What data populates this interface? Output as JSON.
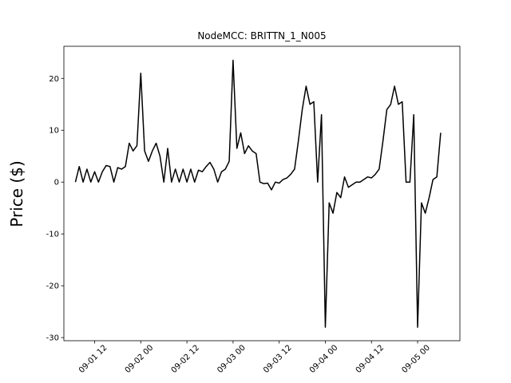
{
  "chart_data": {
    "type": "line",
    "title": "NodeMCC: BRITTN_1_N005",
    "y_label": "Price ($)",
    "x": [
      "09-01 07",
      "09-01 08",
      "09-01 09",
      "09-01 10",
      "09-01 11",
      "09-01 12",
      "09-01 13",
      "09-01 14",
      "09-01 15",
      "09-01 16",
      "09-01 17",
      "09-01 18",
      "09-01 19",
      "09-01 20",
      "09-01 21",
      "09-01 22",
      "09-01 23",
      "09-02 00",
      "09-02 01",
      "09-02 02",
      "09-02 03",
      "09-02 04",
      "09-02 05",
      "09-02 06",
      "09-02 07",
      "09-02 08",
      "09-02 09",
      "09-02 10",
      "09-02 11",
      "09-02 12",
      "09-02 13",
      "09-02 14",
      "09-02 15",
      "09-02 16",
      "09-02 17",
      "09-02 18",
      "09-02 19",
      "09-02 20",
      "09-02 21",
      "09-02 22",
      "09-02 23",
      "09-03 00",
      "09-03 01",
      "09-03 02",
      "09-03 03",
      "09-03 04",
      "09-03 05",
      "09-03 06",
      "09-03 07",
      "09-03 08",
      "09-03 09",
      "09-03 10",
      "09-03 11",
      "09-03 12",
      "09-03 13",
      "09-03 14",
      "09-03 15",
      "09-03 16",
      "09-03 17",
      "09-03 18",
      "09-03 19",
      "09-03 20",
      "09-03 21",
      "09-03 22",
      "09-03 23",
      "09-04 00",
      "09-04 01",
      "09-04 02",
      "09-04 03",
      "09-04 04",
      "09-04 05",
      "09-04 06",
      "09-04 07",
      "09-04 08",
      "09-04 09",
      "09-04 10",
      "09-04 11",
      "09-04 12",
      "09-04 13",
      "09-04 14",
      "09-04 15",
      "09-04 16",
      "09-04 17",
      "09-04 18",
      "09-04 19",
      "09-04 20",
      "09-04 21",
      "09-04 22",
      "09-04 23",
      "09-05 00",
      "09-05 01",
      "09-05 02",
      "09-05 03",
      "09-05 04",
      "09-05 05",
      "09-05 06"
    ],
    "series": [
      {
        "color": "#000000",
        "values": [
          0,
          3,
          0,
          2.5,
          0,
          2,
          0,
          2,
          3.2,
          3,
          0,
          2.8,
          2.5,
          3,
          7.5,
          6,
          7,
          21,
          6,
          4,
          6,
          7.5,
          5,
          0,
          6.5,
          0,
          2.5,
          0,
          2.5,
          0,
          2.5,
          0,
          2.3,
          2,
          3,
          3.8,
          2.5,
          0,
          2,
          2.5,
          4,
          23.5,
          6.5,
          9.5,
          5.5,
          7,
          6,
          5.5,
          0,
          -0.3,
          -0.2,
          -1.5,
          0,
          -0.2,
          0.5,
          0.8,
          1.5,
          2.5,
          8,
          14,
          18.5,
          15,
          15.5,
          0,
          13,
          -28,
          -4,
          -6,
          -2,
          -3,
          1,
          -1,
          -0.5,
          0,
          0,
          0.5,
          1,
          0.8,
          1.5,
          2.5,
          8,
          14,
          15,
          18.5,
          15,
          15.5,
          0,
          0,
          13,
          -28,
          -4,
          -6,
          -3,
          0.5,
          1,
          9.5
        ]
      }
    ],
    "xlim": [
      "09-01 04",
      "09-05 11"
    ],
    "xticks": [
      "09-01 12",
      "09-02 00",
      "09-02 12",
      "09-03 00",
      "09-03 12",
      "09-04 00",
      "09-04 12",
      "09-05 00"
    ],
    "ylim": [
      -30.6,
      26.2
    ],
    "yticks": [
      -30,
      -20,
      -10,
      0,
      10,
      20
    ]
  }
}
